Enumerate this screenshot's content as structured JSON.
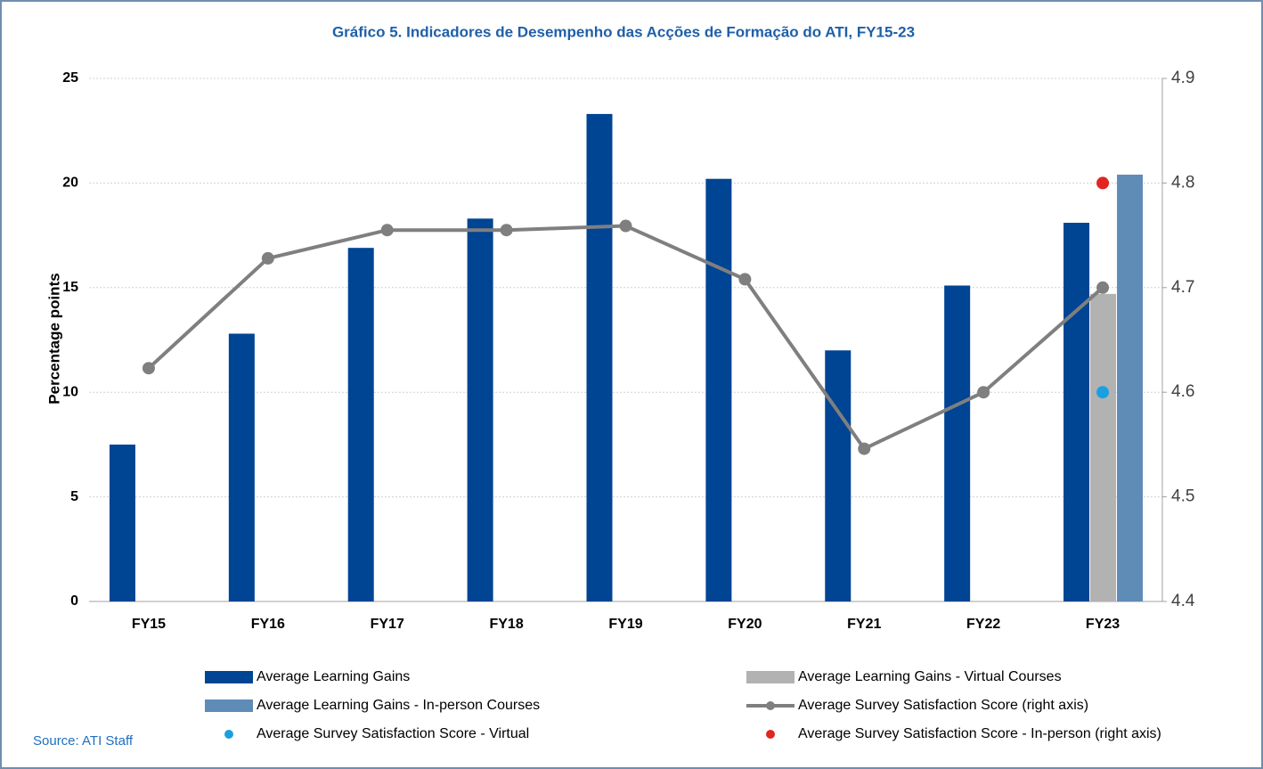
{
  "chart_data": {
    "type": "bar",
    "title": "Gráfico 5. Indicadores de Desempenho das Acções de Formação do ATI, FY15-23",
    "y_label": "Percentage points",
    "source": "Source: ATI Staff",
    "categories": [
      "FY15",
      "FY16",
      "FY17",
      "FY18",
      "FY19",
      "FY20",
      "FY21",
      "FY22",
      "FY23"
    ],
    "series": [
      {
        "name": "Average Learning Gains",
        "type": "bar",
        "color": "#004494",
        "values": [
          7.5,
          12.8,
          16.9,
          18.3,
          23.3,
          20.2,
          12.0,
          15.1,
          18.1
        ]
      },
      {
        "name": "Average Learning Gains - Virtual Courses",
        "type": "bar",
        "color": "#b2b2b2",
        "values": [
          null,
          null,
          null,
          null,
          null,
          null,
          null,
          null,
          14.7
        ]
      },
      {
        "name": "Average Learning Gains - In-person Courses",
        "type": "bar",
        "color": "#5f8bb7",
        "values": [
          null,
          null,
          null,
          null,
          null,
          null,
          null,
          null,
          20.4
        ]
      },
      {
        "name": "Average Survey Satisfaction Score (right axis)",
        "type": "line",
        "axis": "y2",
        "color": "#7f7f7f",
        "values": [
          4.623,
          4.728,
          4.755,
          4.755,
          4.759,
          4.708,
          4.546,
          4.6,
          4.7
        ]
      },
      {
        "name": "Average Survey Satisfaction Score - Virtual",
        "type": "scatter",
        "color": "#1aa0e0",
        "values": [
          null,
          null,
          null,
          null,
          null,
          null,
          null,
          null,
          10
        ]
      },
      {
        "name": "Average Survey Satisfaction Score - In-person (right axis)",
        "type": "scatter",
        "axis": "y2",
        "color": "#e0261f",
        "values": [
          null,
          null,
          null,
          null,
          null,
          null,
          null,
          null,
          4.8
        ]
      }
    ],
    "ylim": [
      0,
      25
    ],
    "yticks": [
      0,
      5,
      10,
      15,
      20,
      25
    ],
    "y2lim": [
      4.4,
      4.9
    ],
    "y2ticks": [
      4.4,
      4.5,
      4.6,
      4.7,
      4.8,
      4.9
    ],
    "grid": true
  }
}
